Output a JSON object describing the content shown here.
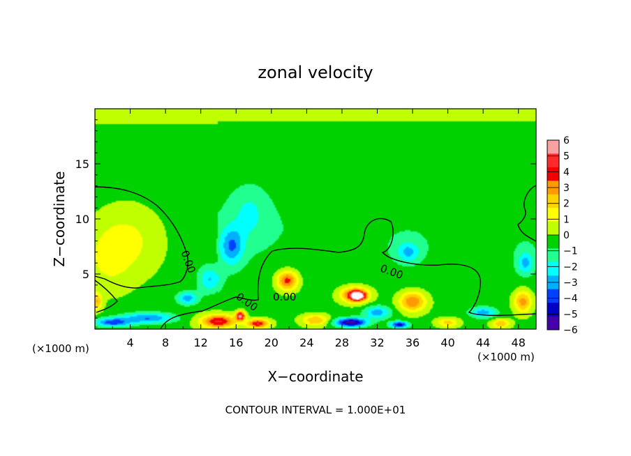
{
  "chart_data": {
    "type": "heatmap",
    "title": "zonal velocity",
    "xlabel": "X−coordinate",
    "ylabel": "Z−coordinate",
    "x_unit_note": "(×1000 m)",
    "x_unit_note_right": "(×1000 m)",
    "footer": "CONTOUR INTERVAL = 1.000E+01",
    "xlim": [
      0,
      50
    ],
    "ylim": [
      0,
      20
    ],
    "x_ticks": [
      4,
      8,
      12,
      16,
      20,
      24,
      28,
      32,
      36,
      40,
      44,
      48
    ],
    "y_ticks": [
      5,
      10,
      15
    ],
    "colorbar": {
      "ticks": [
        "6",
        "5",
        "4",
        "3",
        "2",
        "1",
        "0",
        "−1",
        "−2",
        "−3",
        "−4",
        "−5",
        "−6"
      ],
      "min": -6,
      "max": 6,
      "colors": [
        "#f7a1a1",
        "#ff2a2a",
        "#f50000",
        "#ff9a00",
        "#ffd200",
        "#ffff00",
        "#c0ff00",
        "#00d200",
        "#20ff90",
        "#00ffff",
        "#00b0ff",
        "#0040ff",
        "#0000c8",
        "#4400aa"
      ]
    },
    "contour_labels": [
      {
        "text": "0.00",
        "x": 10.2,
        "y": 6.0,
        "angle": 70
      },
      {
        "text": "0.00",
        "x": 17.0,
        "y": 2.2,
        "angle": 35
      },
      {
        "text": "0.00",
        "x": 21.5,
        "y": 2.6,
        "angle": 0
      },
      {
        "text": "0.00",
        "x": 33.5,
        "y": 4.9,
        "angle": 20
      }
    ],
    "field_features": [
      {
        "x": 3.5,
        "y": 8.0,
        "value": 1.6,
        "sx": 4.0,
        "sy": 3.0
      },
      {
        "x": 1.5,
        "y": 6.0,
        "value": 1.0,
        "sx": 2.5,
        "sy": 2.5
      },
      {
        "x": 15.5,
        "y": 7.5,
        "value": -3.0,
        "sx": 1.3,
        "sy": 1.7
      },
      {
        "x": 13.0,
        "y": 4.5,
        "value": -2.5,
        "sx": 1.3,
        "sy": 1.2
      },
      {
        "x": 10.5,
        "y": 2.8,
        "value": -3.0,
        "sx": 1.2,
        "sy": 0.6
      },
      {
        "x": 17.5,
        "y": 10.5,
        "value": -1.3,
        "sx": 2.0,
        "sy": 2.5
      },
      {
        "x": 21.8,
        "y": 4.4,
        "value": 4.5,
        "sx": 1.2,
        "sy": 0.9
      },
      {
        "x": 29.5,
        "y": 3.1,
        "value": 5.2,
        "sx": 1.6,
        "sy": 0.7
      },
      {
        "x": 29.8,
        "y": 3.0,
        "value": 6.0,
        "sx": 0.7,
        "sy": 0.35
      },
      {
        "x": 36.0,
        "y": 2.5,
        "value": 4.0,
        "sx": 1.5,
        "sy": 0.9
      },
      {
        "x": 35.5,
        "y": 7.0,
        "value": -2.4,
        "sx": 1.3,
        "sy": 0.9
      },
      {
        "x": 48.8,
        "y": 6.0,
        "value": -2.5,
        "sx": 0.9,
        "sy": 1.0
      },
      {
        "x": 48.5,
        "y": 2.5,
        "value": 3.5,
        "sx": 1.0,
        "sy": 1.0
      },
      {
        "x": 0.2,
        "y": 2.5,
        "value": 3.0,
        "sx": 0.6,
        "sy": 0.8
      },
      {
        "x": 14.0,
        "y": 0.7,
        "value": 5.0,
        "sx": 2.0,
        "sy": 0.6
      },
      {
        "x": 16.5,
        "y": 1.2,
        "value": 6.0,
        "sx": 0.5,
        "sy": 0.4
      },
      {
        "x": 18.5,
        "y": 0.5,
        "value": 5.0,
        "sx": 1.2,
        "sy": 0.4
      },
      {
        "x": 29.0,
        "y": 0.6,
        "value": -6.0,
        "sx": 1.8,
        "sy": 0.4
      },
      {
        "x": 34.5,
        "y": 0.4,
        "value": -5.0,
        "sx": 1.0,
        "sy": 0.3
      },
      {
        "x": 25.0,
        "y": 0.8,
        "value": 3.0,
        "sx": 1.5,
        "sy": 0.5
      },
      {
        "x": 40.0,
        "y": 0.6,
        "value": 2.5,
        "sx": 1.2,
        "sy": 0.4
      },
      {
        "x": 44.0,
        "y": 1.5,
        "value": -3.0,
        "sx": 1.5,
        "sy": 0.5
      },
      {
        "x": 6.0,
        "y": 1.0,
        "value": -3.5,
        "sx": 3.0,
        "sy": 0.5
      },
      {
        "x": 2.0,
        "y": 0.6,
        "value": -4.0,
        "sx": 2.0,
        "sy": 0.4
      },
      {
        "x": 32.0,
        "y": 1.5,
        "value": -3.0,
        "sx": 1.5,
        "sy": 0.6
      },
      {
        "x": 46.0,
        "y": 0.5,
        "value": 3.0,
        "sx": 1.0,
        "sy": 0.4
      }
    ]
  }
}
